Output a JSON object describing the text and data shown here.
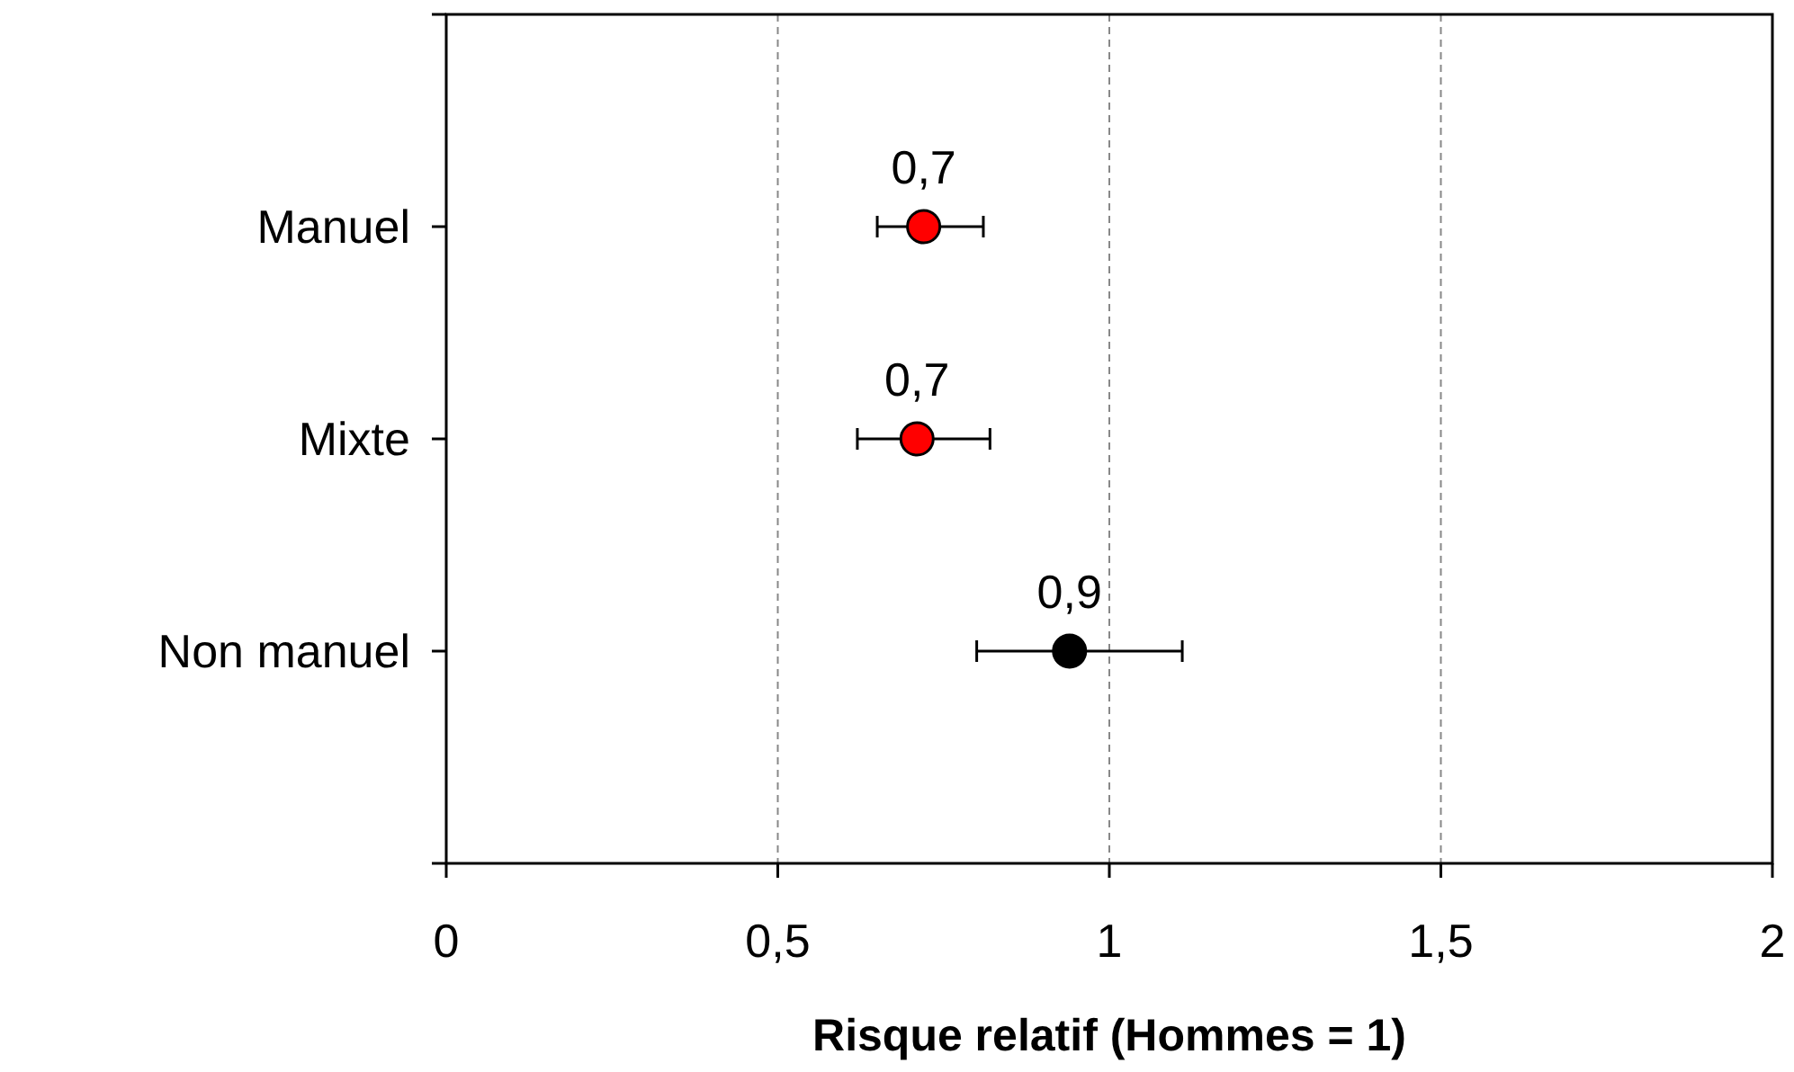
{
  "chart_data": {
    "type": "scatter",
    "orientation": "horizontal",
    "xlabel": "Risque relatif (Hommes = 1)",
    "categories": [
      "Manuel",
      "Mixte",
      "Non manuel"
    ],
    "values": [
      0.72,
      0.71,
      0.94
    ],
    "errors": [
      [
        0.65,
        0.81
      ],
      [
        0.62,
        0.82
      ],
      [
        0.8,
        1.11
      ]
    ],
    "value_labels": [
      "0,7",
      "0,7",
      "0,9"
    ],
    "colors": [
      "#ff0000",
      "#ff0000",
      "#000000"
    ],
    "xlim": [
      0,
      2
    ],
    "xticks": [
      {
        "value": 0,
        "label": "0"
      },
      {
        "value": 0.5,
        "label": "0,5"
      },
      {
        "value": 1,
        "label": "1"
      },
      {
        "value": 1.5,
        "label": "1,5"
      },
      {
        "value": 2,
        "label": "2"
      }
    ],
    "grid": "x",
    "marker": "circle"
  }
}
